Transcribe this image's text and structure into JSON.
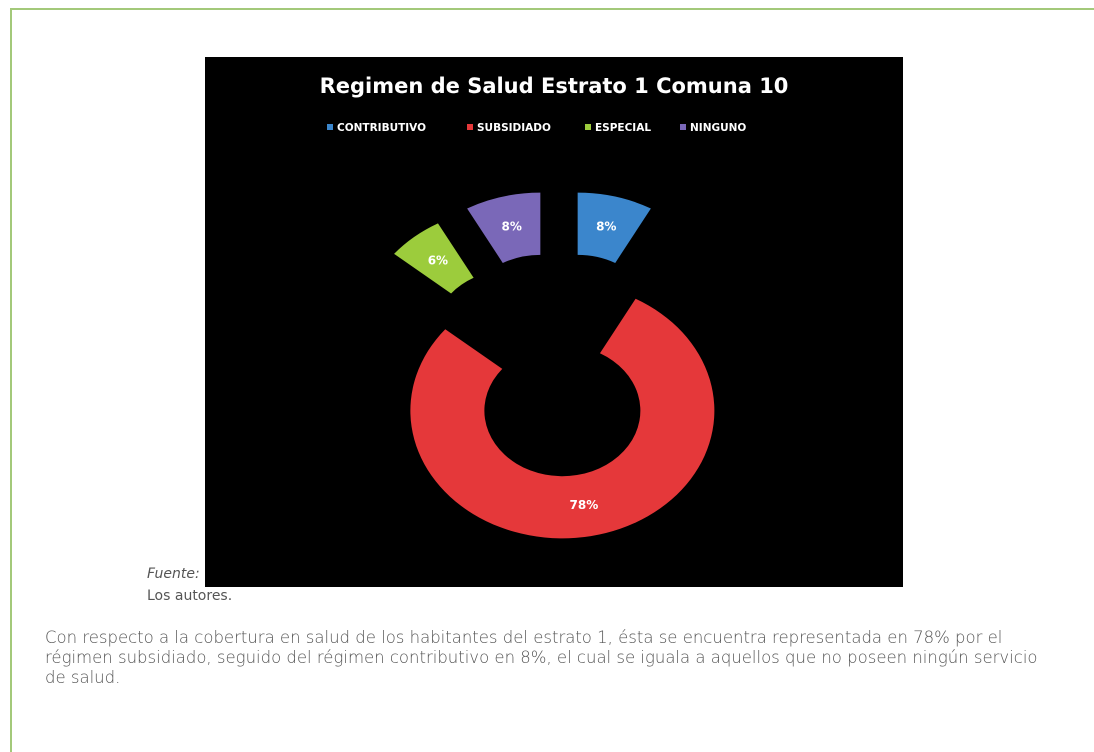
{
  "chart_data": {
    "type": "pie",
    "donut": true,
    "title": "Regimen de Salud Estrato 1 Comuna 10",
    "categories": [
      "CONTRIBUTIVO",
      "SUBSIDIADO",
      "ESPECIAL",
      "NINGUNO"
    ],
    "values": [
      8,
      78,
      6,
      8
    ],
    "value_labels": [
      "8%",
      "78%",
      "6%",
      "8%"
    ],
    "colors": [
      "#3b86cc",
      "#e5383a",
      "#9ccc3c",
      "#7a68b8"
    ],
    "legend": "top"
  },
  "source_label": "Fuente:",
  "source_text": "Los autores.",
  "paragraph": "Con respecto a la cobertura en salud de los habitantes del estrato 1, ésta se encuentra representada en 78% por el régimen subsidiado, seguido del régimen contributivo en 8%, el cual se iguala a aquellos que no poseen ningún servicio de salud."
}
